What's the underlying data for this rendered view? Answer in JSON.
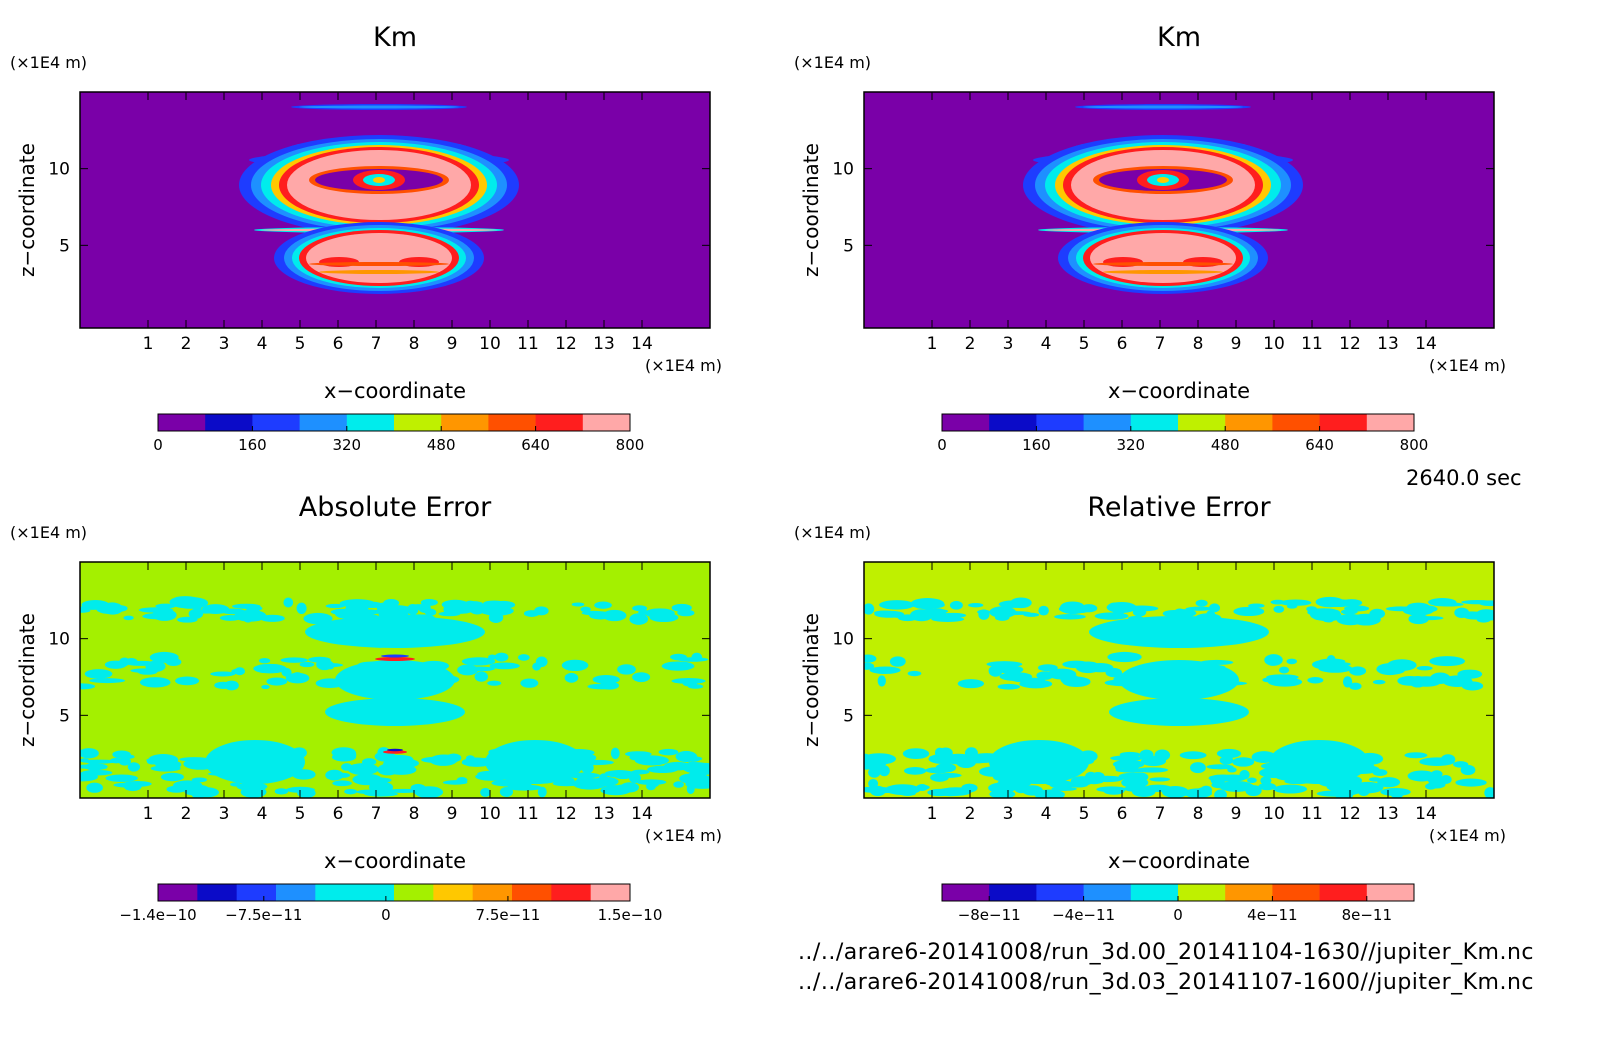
{
  "time_label": "2640.0 sec",
  "files": [
    "../../arare6-20141008/run_3d.00_20141104-1630//jupiter_Km.nc",
    "../../arare6-20141008/run_3d.03_20141107-1600//jupiter_Km.nc"
  ],
  "colors": {
    "purple": "#7a00a8",
    "navy": "#0b0bc8",
    "blue": "#1e3cff",
    "lightblue": "#1e90ff",
    "cyan": "#00ecec",
    "lime": "#bff000",
    "green": "#a4f000",
    "gold": "#ffc800",
    "orange": "#ff9600",
    "orangered": "#ff5000",
    "red": "#ff1e1e",
    "pink": "#ffa8a8"
  },
  "chart_data": [
    {
      "type": "heatmap",
      "title": "Km",
      "xlabel": "x−coordinate",
      "ylabel": "z−coordinate",
      "x_unit": "(×1E4 m)",
      "y_unit": "(×1E4 m)",
      "xlim": [
        0,
        15
      ],
      "ylim": [
        0,
        15
      ],
      "x_ticks": [
        1,
        2,
        3,
        4,
        5,
        6,
        7,
        8,
        9,
        10,
        11,
        12,
        13,
        14
      ],
      "y_ticks": [
        5,
        10
      ],
      "pattern": "plume",
      "colorbar": {
        "levels": [
          0,
          80,
          160,
          240,
          320,
          400,
          480,
          560,
          640,
          720,
          800
        ],
        "labels": [
          "0",
          "160",
          "320",
          "480",
          "640",
          "800"
        ],
        "label_at": [
          0,
          160,
          320,
          480,
          640,
          800
        ]
      }
    },
    {
      "type": "heatmap",
      "title": "Km",
      "xlabel": "x−coordinate",
      "ylabel": "z−coordinate",
      "x_unit": "(×1E4 m)",
      "y_unit": "(×1E4 m)",
      "xlim": [
        0,
        15
      ],
      "ylim": [
        0,
        15
      ],
      "x_ticks": [
        1,
        2,
        3,
        4,
        5,
        6,
        7,
        8,
        9,
        10,
        11,
        12,
        13,
        14
      ],
      "y_ticks": [
        5,
        10
      ],
      "pattern": "plume",
      "colorbar": {
        "levels": [
          0,
          80,
          160,
          240,
          320,
          400,
          480,
          560,
          640,
          720,
          800
        ],
        "labels": [
          "0",
          "160",
          "320",
          "480",
          "640",
          "800"
        ],
        "label_at": [
          0,
          160,
          320,
          480,
          640,
          800
        ]
      }
    },
    {
      "type": "heatmap",
      "title": "Absolute Error",
      "xlabel": "x−coordinate",
      "ylabel": "z−coordinate",
      "x_unit": "(×1E4 m)",
      "y_unit": "(×1E4 m)",
      "xlim": [
        0,
        15
      ],
      "ylim": [
        0,
        15
      ],
      "x_ticks": [
        1,
        2,
        3,
        4,
        5,
        6,
        7,
        8,
        9,
        10,
        11,
        12,
        13,
        14
      ],
      "y_ticks": [
        5,
        10
      ],
      "pattern": "error_abs",
      "colorbar": {
        "levels": [
          -1.4e-10,
          -1.15e-10,
          -9.5e-11,
          -7.5e-11,
          -5e-11,
          -2.5e-11,
          0,
          2.5e-11,
          5e-11,
          7.5e-11,
          1e-10,
          1.25e-10,
          1.5e-10
        ],
        "labels": [
          "−1.4e−10",
          "−7.5e−11",
          "0",
          "7.5e−11",
          "1.5e−10"
        ],
        "label_at": [
          -1.4e-10,
          -7.5e-11,
          0,
          7.5e-11,
          1.5e-10
        ]
      }
    },
    {
      "type": "heatmap",
      "title": "Relative Error",
      "xlabel": "x−coordinate",
      "ylabel": "z−coordinate",
      "x_unit": "(×1E4 m)",
      "y_unit": "(×1E4 m)",
      "xlim": [
        0,
        15
      ],
      "ylim": [
        0,
        15
      ],
      "x_ticks": [
        1,
        2,
        3,
        4,
        5,
        6,
        7,
        8,
        9,
        10,
        11,
        12,
        13,
        14
      ],
      "y_ticks": [
        5,
        10
      ],
      "pattern": "error_rel",
      "colorbar": {
        "levels": [
          -1e-10,
          -8e-11,
          -6e-11,
          -4e-11,
          -2e-11,
          0,
          2e-11,
          4e-11,
          6e-11,
          8e-11,
          1e-10
        ],
        "labels": [
          "−8e−11",
          "−4e−11",
          "0",
          "4e−11",
          "8e−11"
        ],
        "label_at": [
          -8e-11,
          -4e-11,
          0,
          4e-11,
          8e-11
        ]
      }
    }
  ]
}
